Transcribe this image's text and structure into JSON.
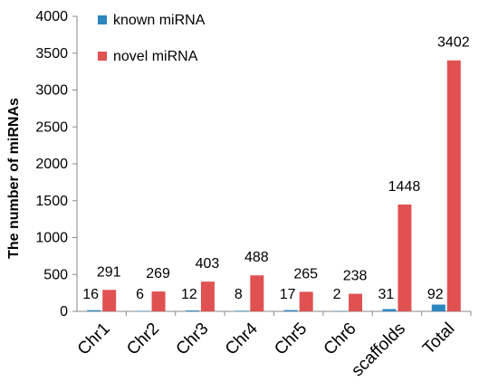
{
  "chart_data": {
    "type": "bar",
    "title": "",
    "xlabel": "",
    "ylabel": "The number of miRNAs",
    "ylim": [
      0,
      4000
    ],
    "yticks": [
      0,
      500,
      1000,
      1500,
      2000,
      2500,
      3000,
      3500,
      4000
    ],
    "grid": false,
    "legend_position": "top-left",
    "categories": [
      "Chr1",
      "Chr2",
      "Chr3",
      "Chr4",
      "Chr5",
      "Chr6",
      "scaffolds",
      "Total"
    ],
    "series": [
      {
        "name": "known miRNA",
        "color": "#2e86c1",
        "values": [
          16,
          6,
          12,
          8,
          17,
          2,
          31,
          92
        ]
      },
      {
        "name": "novel miRNA",
        "color": "#e05252",
        "values": [
          291,
          269,
          403,
          488,
          265,
          238,
          1448,
          3402
        ]
      }
    ]
  }
}
